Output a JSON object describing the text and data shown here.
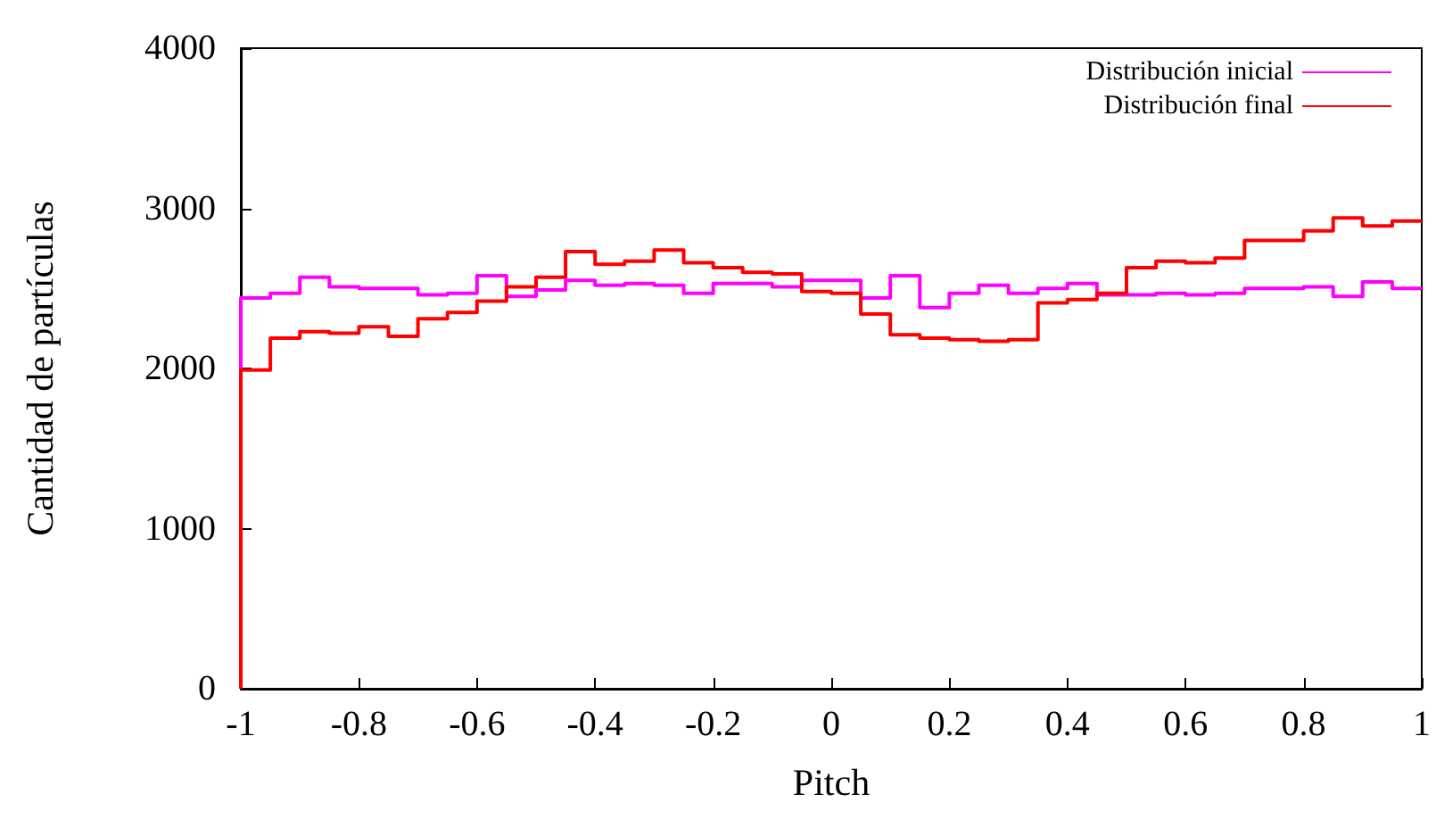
{
  "chart_data": {
    "type": "histogram",
    "xlabel": "Pitch",
    "ylabel": "Cantidad de partículas",
    "legend": "top right",
    "grid": false,
    "bins": [
      -1,
      -0.95,
      -0.9,
      -0.85,
      -0.8,
      -0.75,
      -0.7,
      -0.65,
      -0.6,
      -0.55,
      -0.5,
      -0.45,
      -0.4,
      -0.35,
      -0.3,
      -0.25,
      -0.2,
      -0.15,
      -0.1,
      -0.05,
      0,
      0.05,
      0.1,
      0.15,
      0.2,
      0.25,
      0.3,
      0.35,
      0.4,
      0.45,
      0.5,
      0.55,
      0.6,
      0.65,
      0.7,
      0.75,
      0.8,
      0.85,
      0.9,
      0.95,
      1
    ],
    "series": [
      {
        "name": "Distribución inicial",
        "color": "#ff00ff",
        "values": [
          2440,
          2470,
          2570,
          2510,
          2500,
          2500,
          2460,
          2470,
          2580,
          2450,
          2490,
          2550,
          2520,
          2530,
          2520,
          2470,
          2530,
          2530,
          2510,
          2550,
          2550,
          2440,
          2580,
          2380,
          2470,
          2520,
          2470,
          2500,
          2530,
          2460,
          2460,
          2470,
          2460,
          2470,
          2500,
          2500,
          2510,
          2450,
          2540,
          2500
        ]
      },
      {
        "name": "Distribución final",
        "color": "#ff0000",
        "values": [
          1990,
          2190,
          2230,
          2220,
          2260,
          2200,
          2310,
          2350,
          2420,
          2510,
          2570,
          2730,
          2650,
          2670,
          2740,
          2660,
          2630,
          2600,
          2590,
          2480,
          2470,
          2340,
          2210,
          2190,
          2180,
          2170,
          2180,
          2410,
          2430,
          2470,
          2630,
          2670,
          2660,
          2690,
          2800,
          2800,
          2860,
          2940,
          2890,
          2920
        ]
      }
    ],
    "xlim": [
      -1,
      1
    ],
    "xticks": [
      -1,
      -0.8,
      -0.6,
      -0.4,
      -0.2,
      0,
      0.2,
      0.4,
      0.6,
      0.8,
      1
    ],
    "ylim": [
      0,
      4000
    ],
    "yticks": [
      0,
      1000,
      2000,
      3000,
      4000
    ]
  }
}
